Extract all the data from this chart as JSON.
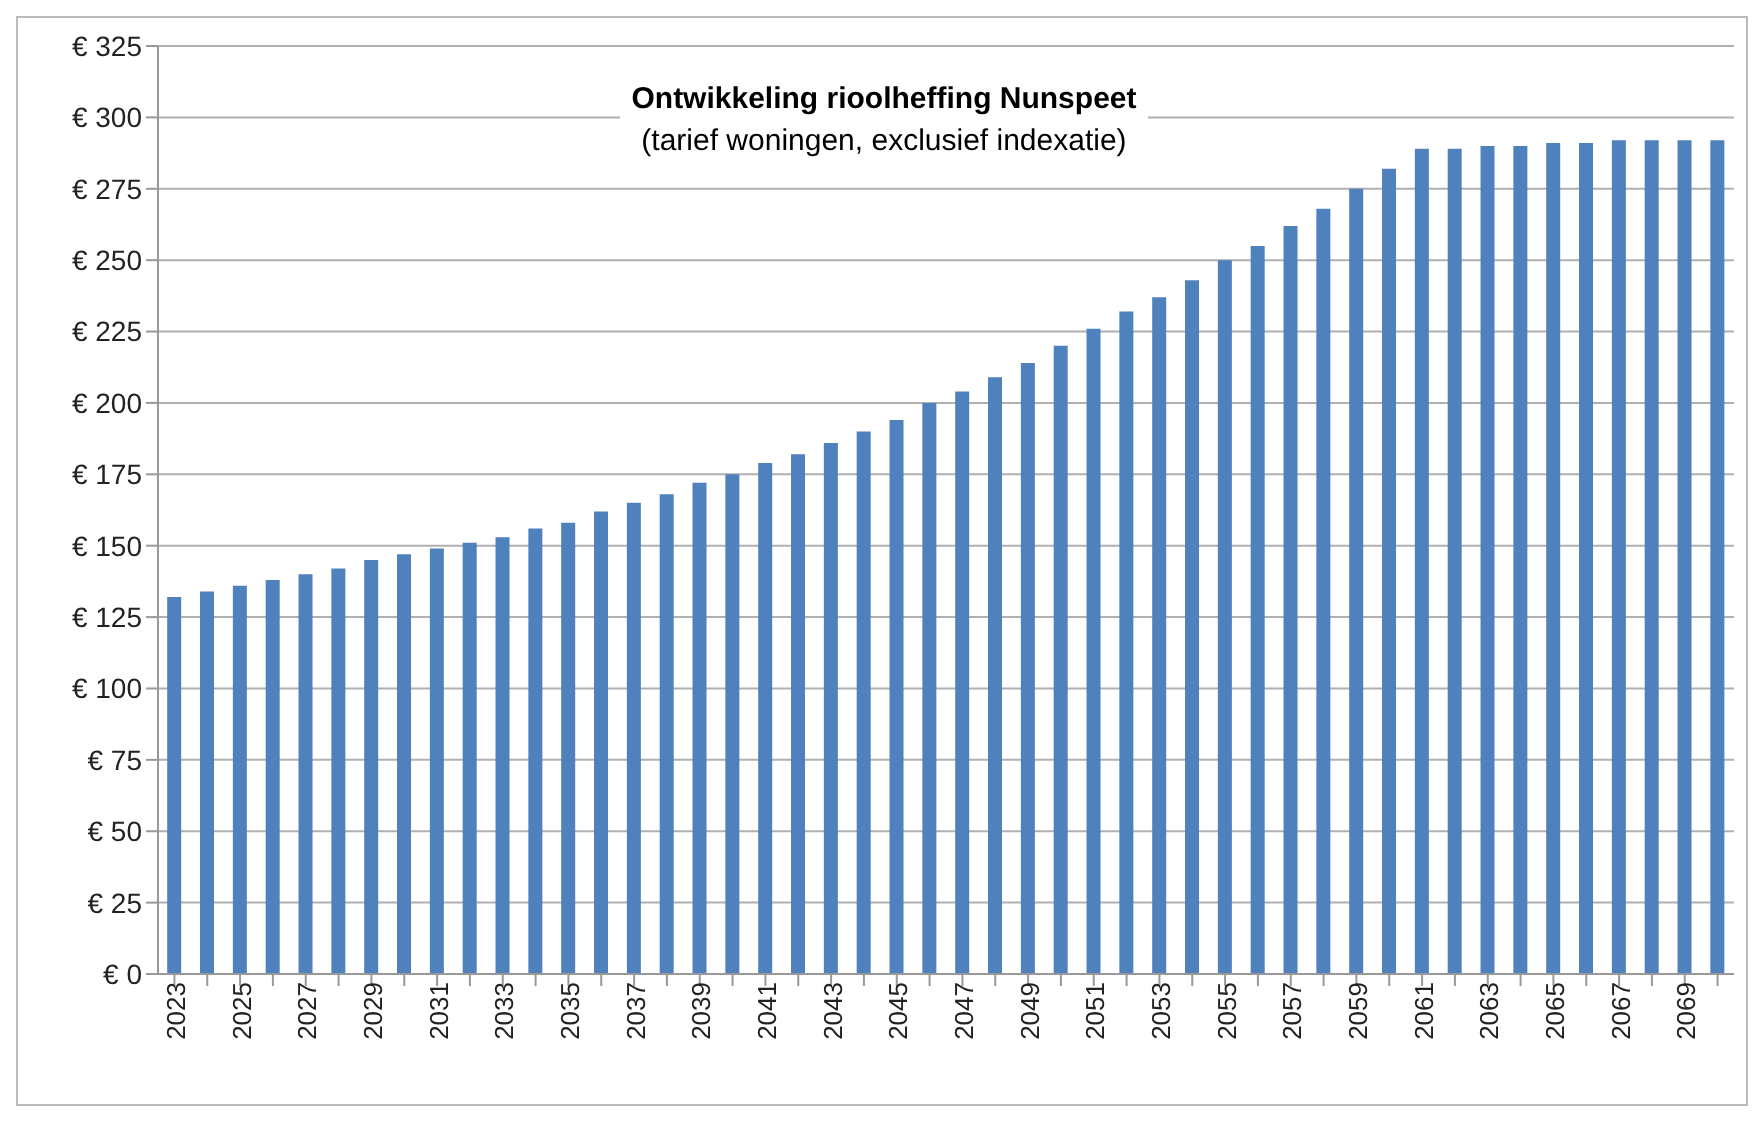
{
  "chart_data": {
    "type": "bar",
    "title": "Ontwikkeling rioolheffing Nunspeet",
    "subtitle": "(tarief woningen, exclusief indexatie)",
    "categories": [
      "2023",
      null,
      "2025",
      null,
      "2027",
      null,
      "2029",
      null,
      "2031",
      null,
      "2033",
      null,
      "2035",
      null,
      "2037",
      null,
      "2039",
      null,
      "2041",
      null,
      "2043",
      null,
      "2045",
      null,
      "2047",
      null,
      "2049",
      null,
      "2051",
      null,
      "2053",
      null,
      "2055",
      null,
      "2057",
      null,
      "2059",
      null,
      "2061",
      null,
      "2063",
      null,
      "2065",
      null,
      "2067",
      null,
      "2069",
      null
    ],
    "values": [
      132,
      134,
      136,
      138,
      140,
      142,
      145,
      147,
      149,
      151,
      153,
      156,
      158,
      162,
      165,
      168,
      172,
      175,
      179,
      182,
      186,
      190,
      194,
      200,
      204,
      209,
      214,
      220,
      226,
      232,
      237,
      243,
      250,
      255,
      262,
      268,
      275,
      282,
      289,
      289,
      290,
      290,
      291,
      291,
      292,
      292,
      292,
      292
    ],
    "color": "#4f81bd",
    "ylim": [
      0,
      325
    ],
    "yticks": [
      {
        "value": 0,
        "label": "€ 0"
      },
      {
        "value": 25,
        "label": "€ 25"
      },
      {
        "value": 50,
        "label": "€ 50"
      },
      {
        "value": 75,
        "label": "€ 75"
      },
      {
        "value": 100,
        "label": "€ 100"
      },
      {
        "value": 125,
        "label": "€ 125"
      },
      {
        "value": 150,
        "label": "€ 150"
      },
      {
        "value": 175,
        "label": "€ 175"
      },
      {
        "value": 200,
        "label": "€ 200"
      },
      {
        "value": 225,
        "label": "€ 225"
      },
      {
        "value": 250,
        "label": "€ 250"
      },
      {
        "value": 275,
        "label": "€ 275"
      },
      {
        "value": 300,
        "label": "€ 300"
      },
      {
        "value": 325,
        "label": "€ 325"
      }
    ],
    "grid": "y",
    "legend": false
  }
}
